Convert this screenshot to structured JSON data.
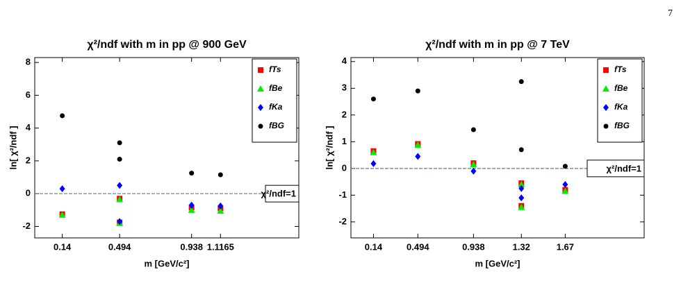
{
  "page_number": "7",
  "chart_data": [
    {
      "type": "scatter",
      "title": "χ²/ndf with m in pp @ 900 GeV",
      "x_label": "m [GeV/c²]",
      "y_label": "ln[ χ²/ndf ]",
      "xlim": [
        -0.03,
        1.6
      ],
      "ylim": [
        -2.7,
        8.3
      ],
      "xticks": [
        0.14,
        0.494,
        0.938,
        1.1165
      ],
      "yticks": [
        -2,
        0,
        2,
        4,
        6,
        8
      ],
      "hline": 0,
      "annotation": "χ²/ndf=1",
      "legend": "upper right",
      "series": [
        {
          "name": "fTs",
          "color": "#ff0000",
          "marker": "square",
          "x": [
            0.14,
            0.494,
            0.494,
            0.938,
            1.1165
          ],
          "values": [
            -1.25,
            -0.3,
            -1.75,
            -0.85,
            -0.9
          ]
        },
        {
          "name": "fBe",
          "color": "#00ee00",
          "marker": "triangle",
          "x": [
            0.14,
            0.494,
            0.494,
            0.938,
            1.1165
          ],
          "values": [
            -1.3,
            -0.35,
            -1.8,
            -1.0,
            -1.05
          ]
        },
        {
          "name": "fKa",
          "color": "#0000ff",
          "marker": "diamond",
          "x": [
            0.14,
            0.494,
            0.494,
            0.938,
            1.1165
          ],
          "values": [
            0.3,
            0.5,
            -1.7,
            -0.7,
            -0.75
          ]
        },
        {
          "name": "fBG",
          "color": "#000000",
          "marker": "circle",
          "x": [
            0.14,
            0.494,
            0.494,
            0.938,
            1.1165
          ],
          "values": [
            4.75,
            3.1,
            2.1,
            1.25,
            1.15
          ]
        }
      ]
    },
    {
      "type": "scatter",
      "title": "χ²/ndf with m in pp @ 7 TeV",
      "x_label": "m [GeV/c²]",
      "y_label": "ln[ χ²/ndf ]",
      "xlim": [
        -0.04,
        2.3
      ],
      "ylim": [
        -2.6,
        4.15
      ],
      "xticks": [
        0.14,
        0.494,
        0.938,
        1.32,
        1.67
      ],
      "yticks": [
        -2,
        -1,
        0,
        1,
        2,
        3,
        4
      ],
      "hline": 0,
      "annotation": "χ²/ndf=1",
      "legend": "upper right",
      "series": [
        {
          "name": "fTs",
          "color": "#ff0000",
          "marker": "square",
          "x": [
            0.14,
            0.494,
            0.938,
            1.32,
            1.32,
            1.67
          ],
          "values": [
            0.65,
            0.92,
            0.2,
            -0.55,
            -1.4,
            -0.8
          ]
        },
        {
          "name": "fBe",
          "color": "#00ee00",
          "marker": "triangle",
          "x": [
            0.14,
            0.494,
            0.938,
            1.32,
            1.32,
            1.67
          ],
          "values": [
            0.6,
            0.88,
            0.15,
            -0.6,
            -1.45,
            -0.85
          ]
        },
        {
          "name": "fKa",
          "color": "#0000ff",
          "marker": "diamond",
          "x": [
            0.14,
            0.494,
            0.938,
            1.32,
            1.32,
            1.67
          ],
          "values": [
            0.18,
            0.45,
            -0.1,
            -0.75,
            -1.1,
            -0.6
          ]
        },
        {
          "name": "fBG",
          "color": "#000000",
          "marker": "circle",
          "x": [
            0.14,
            0.494,
            0.938,
            1.32,
            1.32,
            1.67
          ],
          "values": [
            2.6,
            2.9,
            1.45,
            3.25,
            0.7,
            0.08
          ]
        }
      ]
    }
  ]
}
